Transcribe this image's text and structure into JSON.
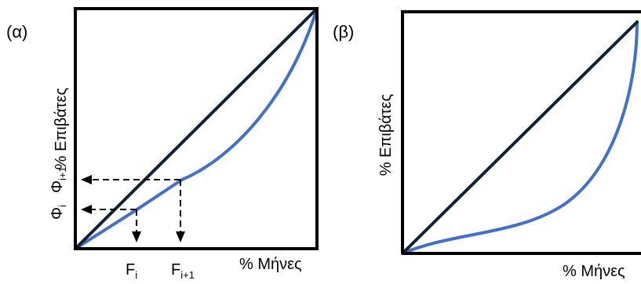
{
  "panel_a": {
    "tag": "(α)",
    "y_axis_label": "% Επιβάτες",
    "x_axis_label": "% Μήνες",
    "phi_i_main": "Φ",
    "phi_i_sub": "i",
    "phi_i1_main": "Φ",
    "phi_i1_sub": "i+1",
    "f_i_main": "F",
    "f_i_sub": "i",
    "f_i1_main": "F",
    "f_i1_sub": "i+1"
  },
  "panel_b": {
    "tag": "(β)",
    "y_axis_label": "% Επιβάτες",
    "x_axis_label": "% Μήνες"
  },
  "colors": {
    "frame": "#000000",
    "equality_line": "#0f2233",
    "curve": "#3f6fd0",
    "guides": "#000000"
  }
}
